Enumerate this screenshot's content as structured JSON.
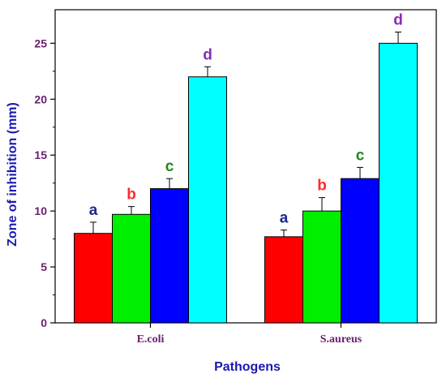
{
  "chart_data": {
    "type": "bar",
    "categories": [
      "E.coli",
      "S.aureus"
    ],
    "series": [
      {
        "values": [
          8.0,
          7.7
        ],
        "errors": [
          1.0,
          0.6
        ],
        "labels": [
          "a",
          "a"
        ],
        "color": "#ff0000",
        "label_color": "#1a2a8a"
      },
      {
        "values": [
          9.7,
          10.0
        ],
        "errors": [
          0.7,
          1.2
        ],
        "labels": [
          "b",
          "b"
        ],
        "color": "#00ee00",
        "label_color": "#ff2a2a"
      },
      {
        "values": [
          12.0,
          12.9
        ],
        "errors": [
          0.9,
          1.0
        ],
        "labels": [
          "c",
          "c"
        ],
        "color": "#0000ff",
        "label_color": "#1a8a1a"
      },
      {
        "values": [
          22.0,
          25.0
        ],
        "errors": [
          0.9,
          1.0
        ],
        "labels": [
          "d",
          "d"
        ],
        "color": "#00ffff",
        "label_color": "#8a2ab8"
      }
    ],
    "xlabel": "Pathogens",
    "ylabel": "Zone of inhibition (mm)",
    "ylim": [
      0,
      28
    ],
    "yticks": [
      0,
      5,
      10,
      15,
      20,
      25
    ],
    "grid": false
  }
}
